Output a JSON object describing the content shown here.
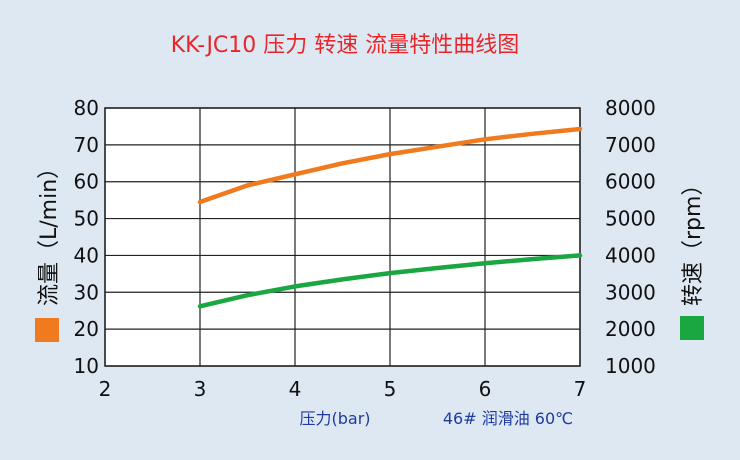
{
  "chart_data": {
    "type": "line",
    "title": "KK-JC10 压力 转速 流量特性曲线图",
    "xlabel": "压力(bar)",
    "ylabel_left": "流量（L/min）",
    "ylabel_right": "转速（rpm）",
    "note": "46# 润滑油   60℃",
    "xlim": [
      2,
      7
    ],
    "ylim_left": [
      10,
      80
    ],
    "ylim_right": [
      1000,
      8000
    ],
    "x_ticks": [
      "2",
      "3",
      "4",
      "5",
      "6",
      "7"
    ],
    "y_left_ticks": [
      "10",
      "20",
      "30",
      "40",
      "50",
      "60",
      "70",
      "80"
    ],
    "y_right_ticks": [
      "1000",
      "2000",
      "3000",
      "4000",
      "5000",
      "6000",
      "7000",
      "8000"
    ],
    "grid": true,
    "series": [
      {
        "axis": "left",
        "color": "#f07a1e",
        "x": [
          3,
          3.5,
          4,
          4.5,
          5,
          5.5,
          6,
          6.5,
          7
        ],
        "y": [
          54.5,
          59,
          62,
          65,
          67.5,
          69.5,
          71.5,
          73,
          74.3
        ]
      },
      {
        "axis": "right",
        "color": "#1aa640",
        "x": [
          3,
          3.5,
          4,
          4.5,
          5,
          5.5,
          6,
          6.5,
          7
        ],
        "y": [
          2620,
          2920,
          3160,
          3350,
          3520,
          3660,
          3790,
          3900,
          4000
        ]
      }
    ]
  }
}
